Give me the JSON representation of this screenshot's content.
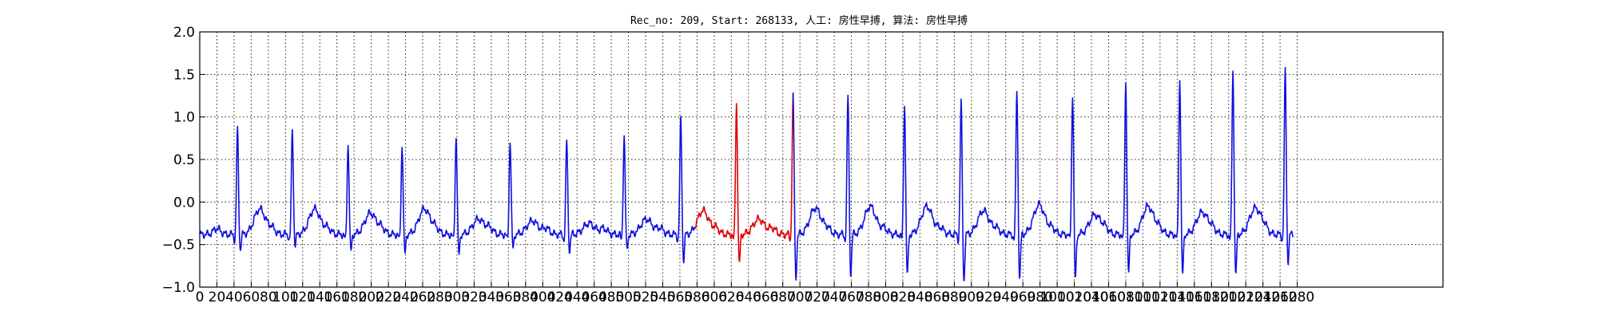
{
  "chart_data": {
    "type": "line",
    "title": "Rec_no: 209, Start: 268133, 人工: 房性早搏, 算法: 房性早搏",
    "xlabel": "",
    "ylabel": "",
    "xlim": [
      0,
      1450
    ],
    "ylim": [
      -1.0,
      2.0
    ],
    "grid": true,
    "yticks": [
      -1.0,
      -0.5,
      0.0,
      0.5,
      1.0,
      1.5,
      2.0
    ],
    "ytick_labels": [
      "−1.0",
      "−0.5",
      "0.0",
      "0.5",
      "1.0",
      "1.5",
      "2.0"
    ],
    "xticks": [
      0,
      20,
      40,
      60,
      80,
      100,
      120,
      140,
      160,
      180,
      200,
      220,
      240,
      260,
      280,
      300,
      320,
      340,
      360,
      380,
      400,
      420,
      440,
      460,
      480,
      500,
      520,
      540,
      560,
      580,
      600,
      620,
      640,
      660,
      680,
      700,
      720,
      740,
      760,
      780,
      800,
      820,
      840,
      860,
      880,
      900,
      920,
      940,
      960,
      980,
      1000,
      1020,
      1040,
      1060,
      1080,
      1100,
      1120,
      1140,
      1160,
      1180,
      1200,
      1220,
      1240,
      1260,
      1280
    ],
    "xtick_labels": [
      "0",
      "20",
      "40",
      "60",
      "80",
      "100",
      "120",
      "140",
      "160",
      "180",
      "200",
      "220",
      "240",
      "260",
      "280",
      "300",
      "320",
      "340",
      "360",
      "380",
      "400",
      "420",
      "440",
      "460",
      "480",
      "500",
      "520",
      "540",
      "560",
      "580",
      "600",
      "620",
      "640",
      "660",
      "680",
      "700",
      "720",
      "740",
      "760",
      "780",
      "800",
      "820",
      "840",
      "860",
      "880",
      "900",
      "920",
      "940",
      "960",
      "980",
      "1000",
      "1020",
      "1040",
      "1060",
      "1080",
      "1100",
      "1120",
      "1140",
      "1160",
      "1180",
      "1200",
      "1220",
      "1240",
      "1260",
      "1280"
    ],
    "beats": [
      {
        "r": 44,
        "peak": 0.85,
        "s": -0.57,
        "t": -0.08,
        "color": "#1010e0"
      },
      {
        "r": 108,
        "peak": 0.85,
        "s": -0.52,
        "t": -0.08,
        "color": "#1010e0"
      },
      {
        "r": 173,
        "peak": 0.68,
        "s": -0.6,
        "t": -0.13,
        "color": "#1010e0"
      },
      {
        "r": 236,
        "peak": 0.66,
        "s": -0.63,
        "t": -0.08,
        "color": "#1010e0"
      },
      {
        "r": 299,
        "peak": 0.77,
        "s": -0.64,
        "t": -0.2,
        "color": "#1010e0"
      },
      {
        "r": 362,
        "peak": 0.72,
        "s": -0.56,
        "t": -0.22,
        "color": "#1010e0"
      },
      {
        "r": 428,
        "peak": 0.72,
        "s": -0.58,
        "t": -0.25,
        "color": "#1010e0"
      },
      {
        "r": 495,
        "peak": 0.78,
        "s": -0.58,
        "t": -0.2,
        "color": "#1010e0"
      },
      {
        "r": 561,
        "peak": 0.97,
        "s": -0.7,
        "t": -0.1,
        "color": "#1010e0"
      },
      {
        "r": 626,
        "peak": 1.17,
        "s": -0.76,
        "t": -0.2,
        "color": "#e00000"
      },
      {
        "r": 692,
        "peak": 1.25,
        "s": -0.92,
        "t": -0.07,
        "color": "#1010e0"
      },
      {
        "r": 756,
        "peak": 1.25,
        "s": -0.87,
        "t": -0.05,
        "color": "#1010e0"
      },
      {
        "r": 822,
        "peak": 1.17,
        "s": -0.9,
        "t": -0.05,
        "color": "#1010e0"
      },
      {
        "r": 888,
        "peak": 1.18,
        "s": -0.95,
        "t": -0.1,
        "color": "#1010e0"
      },
      {
        "r": 953,
        "peak": 1.32,
        "s": -0.93,
        "t": -0.03,
        "color": "#1010e0"
      },
      {
        "r": 1018,
        "peak": 1.27,
        "s": -0.93,
        "t": -0.15,
        "color": "#1010e0"
      },
      {
        "r": 1080,
        "peak": 1.42,
        "s": -0.87,
        "t": -0.05,
        "color": "#1010e0"
      },
      {
        "r": 1143,
        "peak": 1.45,
        "s": -0.88,
        "t": -0.12,
        "color": "#1010e0"
      },
      {
        "r": 1205,
        "peak": 1.55,
        "s": -0.9,
        "t": -0.07,
        "color": "#1010e0"
      },
      {
        "r": 1266,
        "peak": 1.55,
        "s": -0.72,
        "t": -0.1,
        "color": "#1010e0"
      }
    ],
    "baseline": -0.38,
    "x_end": 1275,
    "highlight": {
      "start": 578,
      "end": 692,
      "color": "#e00000"
    },
    "series_color": "#1010e0"
  }
}
